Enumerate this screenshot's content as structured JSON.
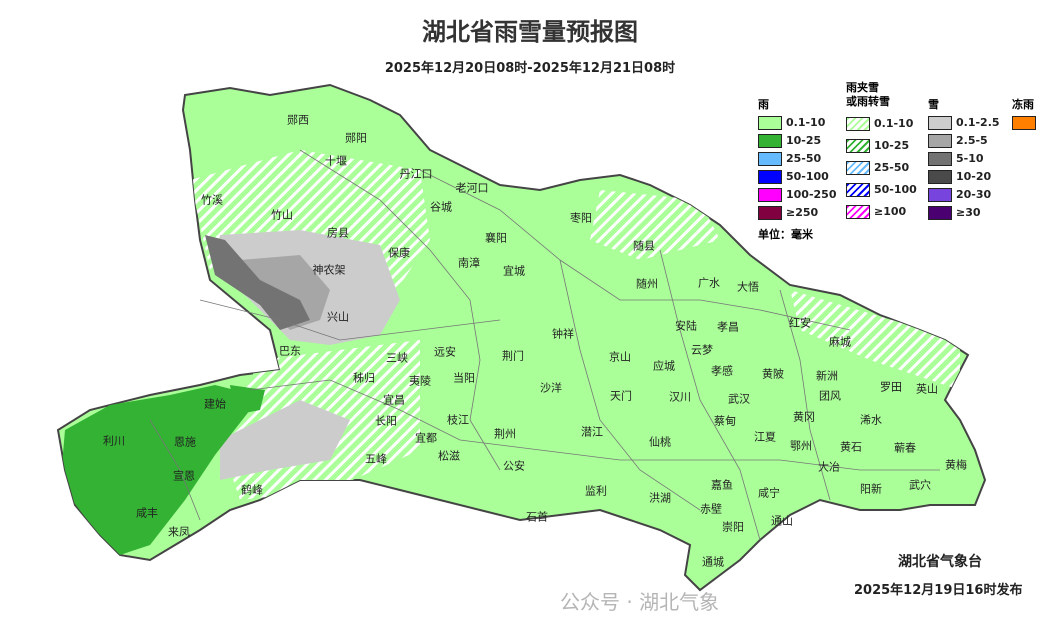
{
  "title": "湖北省雨雪量预报图",
  "subtitle": "2025年12月20日08时-2025年12月21日08时",
  "legend": {
    "rain": {
      "label": "雨",
      "items": [
        {
          "label": "0.1-10",
          "color": "#aaff99"
        },
        {
          "label": "10-25",
          "color": "#33b233"
        },
        {
          "label": "25-50",
          "color": "#66bbff"
        },
        {
          "label": "50-100",
          "color": "#0000ff"
        },
        {
          "label": "100-250",
          "color": "#ff00ff"
        },
        {
          "label": "≥250",
          "color": "#800040"
        }
      ]
    },
    "sleet": {
      "label_line1": "雨夹雪",
      "label_line2": "或雨转雪",
      "items": [
        {
          "label": "0.1-10",
          "color": "#aaff99"
        },
        {
          "label": "10-25",
          "color": "#33b233"
        },
        {
          "label": "25-50",
          "color": "#66bbff"
        },
        {
          "label": "50-100",
          "color": "#0000ff"
        },
        {
          "label": "≥100",
          "color": "#ff00ff"
        }
      ]
    },
    "snow": {
      "label": "雪",
      "items": [
        {
          "label": "0.1-2.5",
          "color": "#cccccc"
        },
        {
          "label": "2.5-5",
          "color": "#a6a6a6"
        },
        {
          "label": "5-10",
          "color": "#737373"
        },
        {
          "label": "10-20",
          "color": "#4a4a4a"
        },
        {
          "label": "20-30",
          "color": "#7744dd"
        },
        {
          "label": "≥30",
          "color": "#4a0070"
        }
      ]
    },
    "freezing_rain": {
      "label": "冻雨",
      "color": "#ff8000"
    },
    "unit": "单位：毫米"
  },
  "cities": [
    "郧西",
    "郧阳",
    "十堰",
    "丹江口",
    "老河口",
    "谷城",
    "竹溪",
    "竹山",
    "房县",
    "保康",
    "南漳",
    "襄阳",
    "枣阳",
    "宜城",
    "随县",
    "神农架",
    "随州",
    "广水",
    "大悟",
    "兴山",
    "钟祥",
    "安陆",
    "孝昌",
    "红安",
    "麻城",
    "京山",
    "云梦",
    "应城",
    "孝感",
    "巴东",
    "三峡",
    "远安",
    "荆门",
    "黄陂",
    "新洲",
    "罗田",
    "英山",
    "秭归",
    "夷陵",
    "当阳",
    "沙洋",
    "团风",
    "建始",
    "宜昌",
    "天门",
    "汉川",
    "武汉",
    "黄冈",
    "浠水",
    "利川",
    "恩施",
    "长阳",
    "枝江",
    "蔡甸",
    "宜都",
    "荆州",
    "潜江",
    "江夏",
    "鄂州",
    "黄石",
    "蕲春",
    "仙桃",
    "五峰",
    "松滋",
    "大冶",
    "黄梅",
    "宣恩",
    "公安",
    "鹤峰",
    "监利",
    "嘉鱼",
    "阳新",
    "武穴",
    "洪湖",
    "咸宁",
    "赤壁",
    "咸丰",
    "石首",
    "来凤",
    "崇阳",
    "通山",
    "通城"
  ],
  "publisher": "湖北省气象台",
  "publish_time": "2025年12月19日16时发布",
  "watermark": "公众号 · 湖北气象"
}
